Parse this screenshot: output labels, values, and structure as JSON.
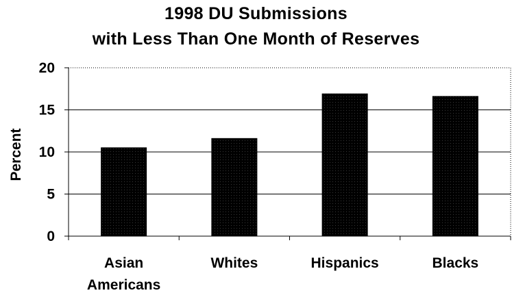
{
  "chart_data": {
    "type": "bar",
    "title": [
      "1998 DU Submissions",
      "with Less Than One Month of Reserves"
    ],
    "xlabel": "",
    "ylabel": "Percent",
    "categories": [
      [
        "Asian",
        "Americans"
      ],
      [
        "Whites"
      ],
      [
        "Hispanics"
      ],
      [
        "Blacks"
      ]
    ],
    "values": [
      10.5,
      11.6,
      16.9,
      16.6
    ],
    "ylim": [
      0,
      20
    ],
    "yticks": [
      "0",
      "5",
      "10",
      "15",
      "20"
    ],
    "ytick_values": [
      0,
      5,
      10,
      15,
      20
    ],
    "grid": true,
    "legend": "none",
    "bar_color": "#000000"
  }
}
